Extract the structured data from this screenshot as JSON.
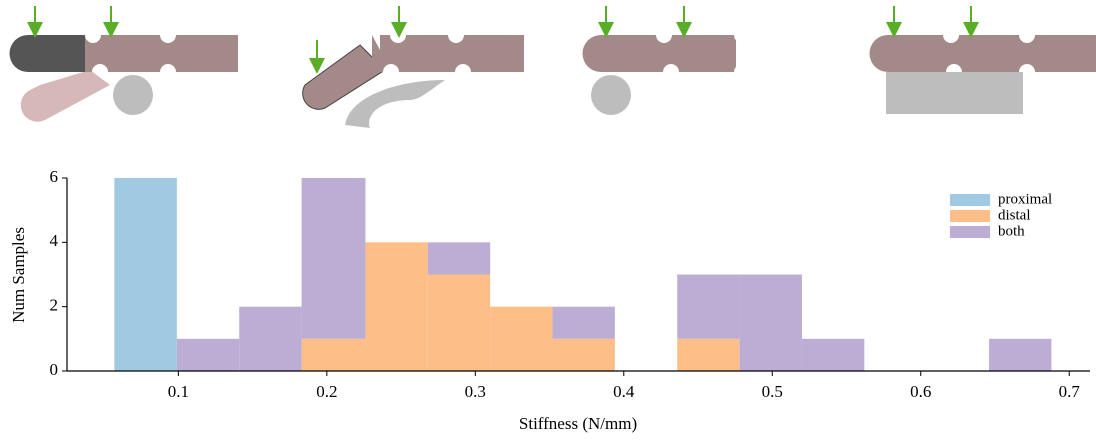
{
  "chart_data": {
    "type": "histogram",
    "stacked": true,
    "xlabel": "Stiffness (N/mm)",
    "ylabel": "Num Samples",
    "bins": [
      0.0569,
      0.099,
      0.141,
      0.183,
      0.226,
      0.268,
      0.31,
      0.352,
      0.394,
      0.436,
      0.478,
      0.52,
      0.562,
      0.604,
      0.646,
      0.688
    ],
    "series": [
      {
        "name": "proximal",
        "color": "#9fcae1",
        "values": [
          6,
          0,
          0,
          0,
          0,
          0,
          0,
          0,
          0,
          0,
          0,
          0,
          0,
          0,
          0
        ]
      },
      {
        "name": "distal",
        "color": "#fdbf87",
        "values": [
          0,
          0,
          0,
          1,
          4,
          3,
          2,
          1,
          0,
          1,
          0,
          0,
          0,
          0,
          0
        ]
      },
      {
        "name": "both",
        "color": "#bcadd4",
        "values": [
          0,
          1,
          2,
          5,
          0,
          1,
          0,
          1,
          0,
          2,
          3,
          1,
          0,
          0,
          1
        ]
      }
    ],
    "xlim": [
      0.025,
      0.714
    ],
    "ylim": [
      0,
      6
    ],
    "xticks": [
      0.1,
      0.2,
      0.3,
      0.4,
      0.5,
      0.6,
      0.7
    ],
    "yticks": [
      0,
      2,
      4,
      6
    ],
    "legend": "upper right"
  }
}
